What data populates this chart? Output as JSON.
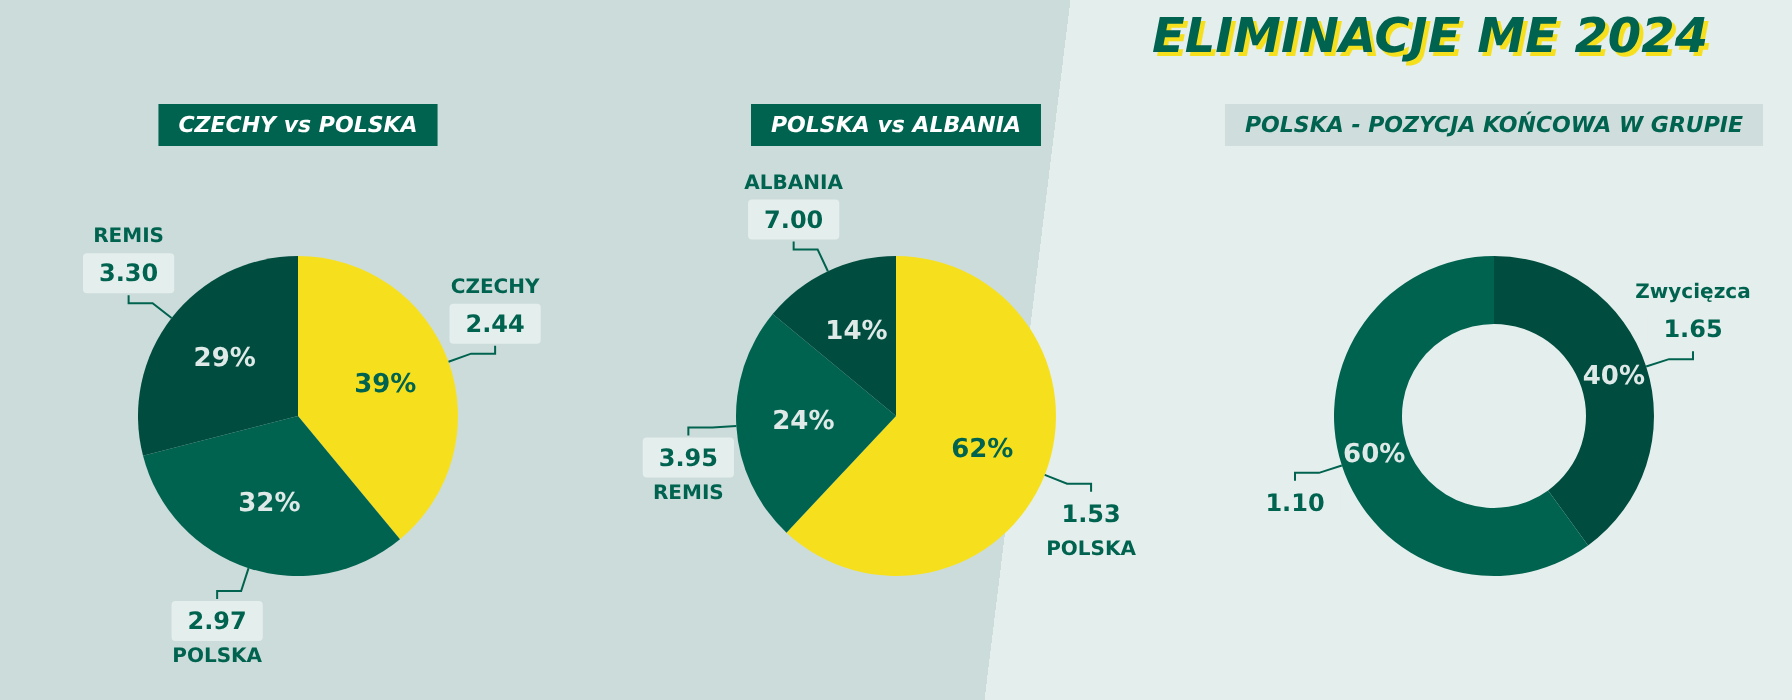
{
  "chart_data": [
    {
      "type": "pie",
      "title": "CZECHY vs POLSKA",
      "categories": [
        "CZECHY",
        "POLSKA",
        "REMIS"
      ],
      "values": [
        39,
        32,
        29
      ],
      "value_labels": [
        "39%",
        "32%",
        "29%"
      ],
      "colors": [
        "#f6e01e",
        "#00634f",
        "#004d3f"
      ],
      "annotations": [
        "2.44",
        "2.97",
        "3.30"
      ]
    },
    {
      "type": "pie",
      "title": "POLSKA vs ALBANIA",
      "categories": [
        "POLSKA",
        "REMIS",
        "ALBANIA"
      ],
      "values": [
        62,
        24,
        14
      ],
      "value_labels": [
        "62%",
        "24%",
        "14%"
      ],
      "colors": [
        "#f6e01e",
        "#00634f",
        "#004d3f"
      ],
      "annotations": [
        "1.53",
        "3.95",
        "7.00"
      ]
    },
    {
      "type": "donut",
      "title": "POLSKA - POZYCJA KOŃCOWA W GRUPIE",
      "subtitle": "ELIMINACJE ME 2024",
      "categories": [
        "Zwycięzca",
        null
      ],
      "values": [
        40,
        60
      ],
      "value_labels": [
        "40%",
        "60%"
      ],
      "colors": [
        "#004d3f",
        "#00634f"
      ],
      "annotations": [
        "1.65",
        "1.10"
      ]
    }
  ]
}
